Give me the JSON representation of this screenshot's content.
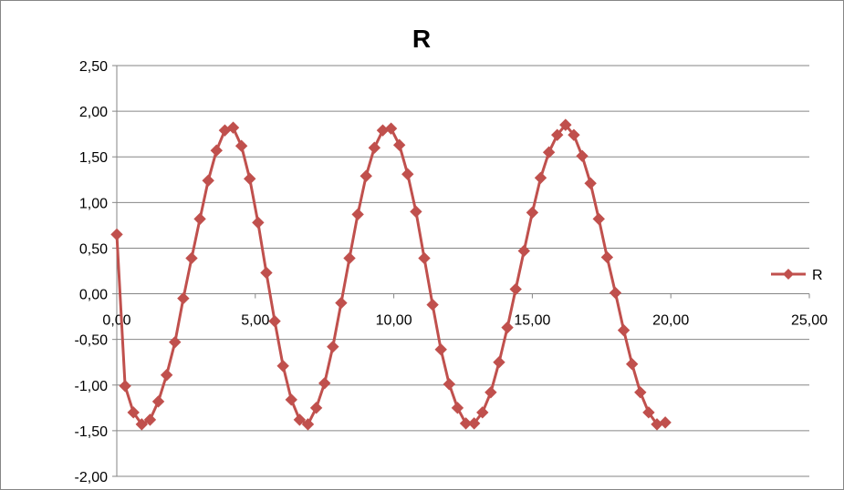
{
  "chart_data": {
    "type": "line",
    "title": "R",
    "xlabel": "",
    "ylabel": "",
    "xlim": [
      0,
      25
    ],
    "ylim": [
      -2,
      2.5
    ],
    "x_ticks": [
      "0,00",
      "5,00",
      "10,00",
      "15,00",
      "20,00",
      "25,00"
    ],
    "y_ticks": [
      "2,50",
      "2,00",
      "1,50",
      "1,00",
      "0,50",
      "0,00",
      "-0,50",
      "-1,00",
      "-1,50",
      "-2,00"
    ],
    "grid": "horizontal",
    "legend_position": "right",
    "series": [
      {
        "name": "R",
        "color": "#c0504d",
        "marker": "diamond",
        "x": [
          0.0,
          0.3,
          0.6,
          0.9,
          1.2,
          1.5,
          1.8,
          2.1,
          2.4,
          2.7,
          3.0,
          3.3,
          3.6,
          3.9,
          4.2,
          4.5,
          4.8,
          5.1,
          5.4,
          5.7,
          6.0,
          6.3,
          6.6,
          6.9,
          7.2,
          7.5,
          7.8,
          8.1,
          8.4,
          8.7,
          9.0,
          9.3,
          9.6,
          9.9,
          10.2,
          10.5,
          10.8,
          11.1,
          11.4,
          11.7,
          12.0,
          12.3,
          12.6,
          12.9,
          13.2,
          13.5,
          13.8,
          14.1,
          14.4,
          14.7,
          15.0,
          15.3,
          15.6,
          15.9,
          16.2,
          16.5,
          16.8,
          17.1,
          17.4,
          17.7,
          18.0,
          18.3,
          18.6,
          18.9,
          19.2,
          19.5,
          19.8
        ],
        "y": [
          0.65,
          -1.01,
          -1.3,
          -1.43,
          -1.38,
          -1.18,
          -0.89,
          -0.53,
          -0.05,
          0.39,
          0.82,
          1.24,
          1.57,
          1.79,
          1.82,
          1.62,
          1.26,
          0.78,
          0.23,
          -0.3,
          -0.79,
          -1.16,
          -1.38,
          -1.43,
          -1.25,
          -0.98,
          -0.58,
          -0.1,
          0.39,
          0.87,
          1.29,
          1.6,
          1.79,
          1.81,
          1.63,
          1.31,
          0.9,
          0.39,
          -0.12,
          -0.61,
          -0.99,
          -1.25,
          -1.42,
          -1.42,
          -1.3,
          -1.08,
          -0.75,
          -0.37,
          0.05,
          0.47,
          0.89,
          1.27,
          1.55,
          1.74,
          1.85,
          1.74,
          1.51,
          1.21,
          0.82,
          0.4,
          0.01,
          -0.4,
          -0.77,
          -1.08,
          -1.3,
          -1.43,
          -1.41
        ]
      }
    ]
  }
}
